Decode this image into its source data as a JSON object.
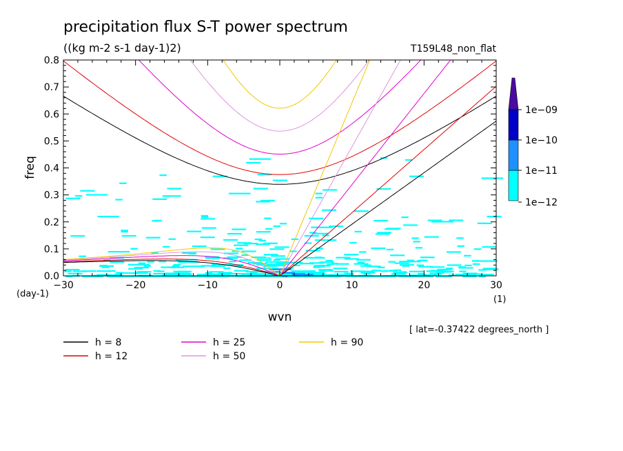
{
  "chart_data": {
    "type": "heatmap",
    "title": "precipitation flux S-T power spectrum",
    "subtitle": "((kg m-2 s-1 day-1)2)",
    "run_label": "T159L48_non_flat",
    "xlabel": "wvn",
    "ylabel": "freq",
    "x_unit": "(1)",
    "y_unit": "(day-1)",
    "xlim": [
      -30,
      30
    ],
    "ylim": [
      0,
      0.8
    ],
    "xticks": [
      -30,
      -20,
      -10,
      0,
      10,
      20,
      30
    ],
    "yticks": [
      0.0,
      0.1,
      0.2,
      0.3,
      0.4,
      0.5,
      0.6,
      0.7,
      0.8
    ],
    "xtick_labels": [
      "-30",
      "-20",
      "-10",
      "0",
      "10",
      "20",
      "30"
    ],
    "ytick_labels": [
      "0.0",
      "0.1",
      "0.2",
      "0.3",
      "0.4",
      "0.5",
      "0.6",
      "0.7",
      "0.8"
    ],
    "footnote": "[ lat=-0.37422 degrees_north ]",
    "colorbar": {
      "labels": [
        "1e-09",
        "1e-10",
        "1e-11",
        "1e-12"
      ],
      "levels": [
        {
          "range": "1e-12 to 1e-11",
          "color": "#00ffff"
        },
        {
          "range": "1e-11 to 1e-10",
          "color": "#1e90ff"
        },
        {
          "range": "1e-10 to 1e-09",
          "color": "#0000c8"
        },
        {
          "range": "> 1e-09",
          "color": "#4b0aa0"
        }
      ]
    },
    "heatmap_summary": "power above 1e-12 concentrated at |wvn| < 15 and freq < 0.1, sparse cells up to freq 0.4",
    "dispersion_curves": [
      {
        "name": "h = 8",
        "equivalent_depth": 8,
        "color": "#000000"
      },
      {
        "name": "h = 12",
        "equivalent_depth": 12,
        "color": "#e00000"
      },
      {
        "name": "h = 25",
        "equivalent_depth": 25,
        "color": "#e000c8"
      },
      {
        "name": "h = 50",
        "equivalent_depth": 50,
        "color": "#dc96dc"
      },
      {
        "name": "h = 90",
        "equivalent_depth": 90,
        "color": "#f0c800"
      }
    ],
    "legend_placement": "bottom"
  }
}
